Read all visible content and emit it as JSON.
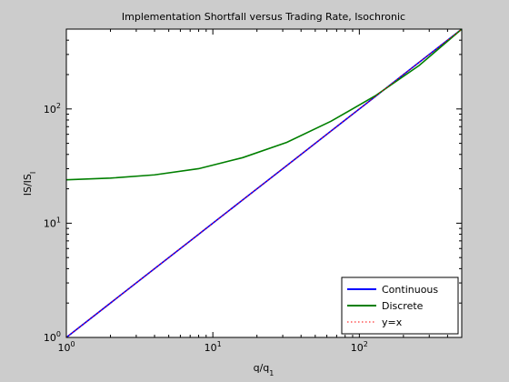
{
  "chart_data": {
    "type": "line",
    "title": "Implementation Shortfall versus Trading Rate, Isochronic",
    "xlabel": "q/q",
    "xlabel_sub": "1",
    "ylabel": "IS/IS",
    "ylabel_sub": "I",
    "xscale": "log",
    "yscale": "log",
    "xlim": [
      1,
      500
    ],
    "ylim": [
      1,
      500
    ],
    "grid": false,
    "legend_position": "bottom-right",
    "x_ticks": [
      {
        "value": 1,
        "base": "10",
        "exp": "0"
      },
      {
        "value": 10,
        "base": "10",
        "exp": "1"
      },
      {
        "value": 100,
        "base": "10",
        "exp": "2"
      }
    ],
    "y_ticks": [
      {
        "value": 1,
        "base": "10",
        "exp": "0"
      },
      {
        "value": 10,
        "base": "10",
        "exp": "1"
      },
      {
        "value": 100,
        "base": "10",
        "exp": "2"
      }
    ],
    "series": [
      {
        "name": "Continuous",
        "color": "#0000ff",
        "style": "solid",
        "x": [
          1,
          2,
          4,
          8,
          16,
          32,
          64,
          128,
          256,
          500
        ],
        "y": [
          1,
          2,
          4,
          8,
          16,
          32,
          64,
          128,
          256,
          500
        ]
      },
      {
        "name": "Discrete",
        "color": "#007f00",
        "style": "solid",
        "x": [
          1,
          2,
          4,
          8,
          16,
          32,
          64,
          128,
          256,
          500
        ],
        "y": [
          24,
          24.8,
          26.5,
          30,
          37.5,
          51,
          78,
          130,
          240,
          500
        ]
      },
      {
        "name": "y=x",
        "color": "#ff0000",
        "style": "dotted",
        "x": [
          1,
          500
        ],
        "y": [
          1,
          500
        ]
      }
    ]
  }
}
